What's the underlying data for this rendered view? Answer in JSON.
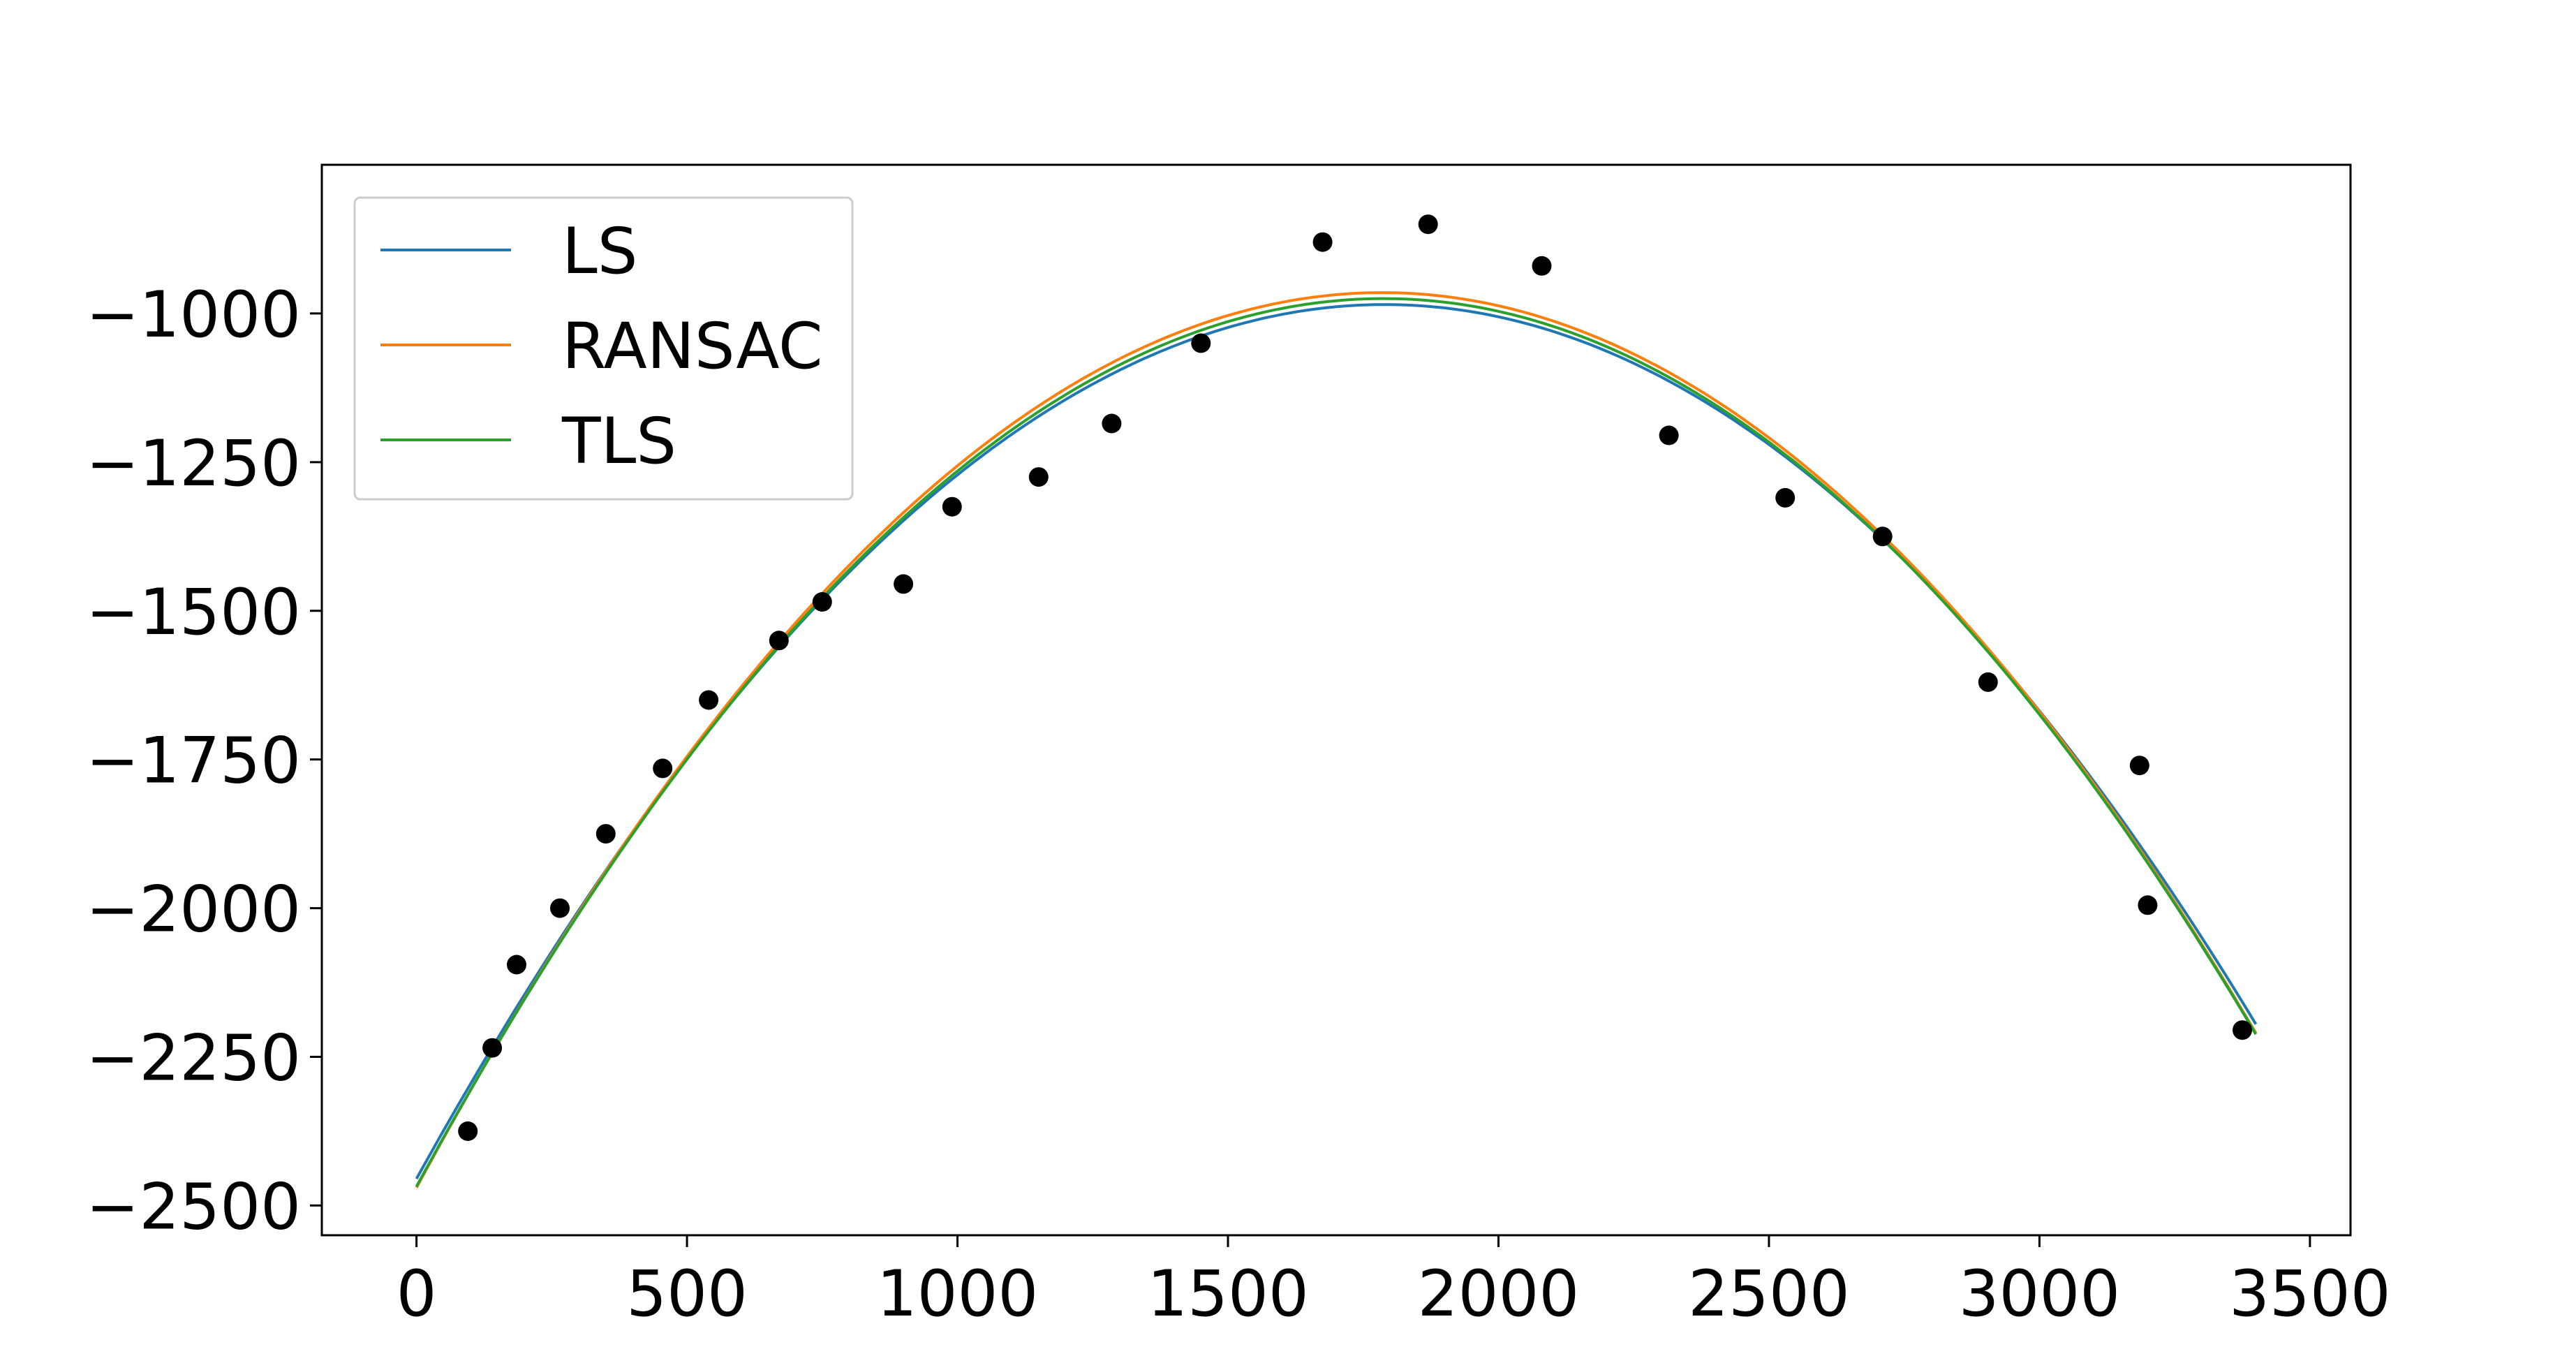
{
  "chart_data": {
    "type": "scatter",
    "title": "",
    "xlabel": "",
    "ylabel": "",
    "xlim": [
      -175,
      3575
    ],
    "ylim": [
      -2550,
      -750
    ],
    "x_ticks": [
      0,
      500,
      1000,
      1500,
      2000,
      2500,
      3000,
      3500
    ],
    "y_ticks": [
      -1000,
      -1250,
      -1500,
      -1750,
      -2000,
      -2250,
      -2500
    ],
    "x_tick_labels": [
      "0",
      "500",
      "1000",
      "1500",
      "2000",
      "2500",
      "3000",
      "3500"
    ],
    "y_tick_labels": [
      "−1000",
      "−1250",
      "−1500",
      "−1750",
      "−2000",
      "−2250",
      "−2500"
    ],
    "grid": false,
    "legend": {
      "placement": "top-left"
    },
    "points": {
      "color": "#000000",
      "x": [
        95,
        140,
        185,
        265,
        350,
        455,
        540,
        670,
        750,
        900,
        990,
        1150,
        1285,
        1450,
        1675,
        1870,
        2080,
        2315,
        2530,
        2710,
        2905,
        3185,
        3200,
        3375
      ],
      "y": [
        -2375,
        -2235,
        -2095,
        -2000,
        -1875,
        -1765,
        -1650,
        -1550,
        -1485,
        -1455,
        -1325,
        -1275,
        -1185,
        -1050,
        -880,
        -850,
        -920,
        -1205,
        -1310,
        -1375,
        -1620,
        -1760,
        -1995,
        -2205
      ]
    },
    "series": [
      {
        "name": "LS",
        "color": "#1f77b4",
        "type": "line",
        "x_range": [
          0,
          3400
        ],
        "vertex_x": 1790,
        "vertex_y": -985,
        "start_y": -2455,
        "end_y": -2195
      },
      {
        "name": "RANSAC",
        "color": "#ff7f0e",
        "type": "line",
        "x_range": [
          0,
          3400
        ],
        "vertex_x": 1785,
        "vertex_y": -965,
        "start_y": -2470,
        "end_y": -2210
      },
      {
        "name": "TLS",
        "color": "#2ca02c",
        "type": "line",
        "x_range": [
          0,
          3400
        ],
        "vertex_x": 1788,
        "vertex_y": -975,
        "start_y": -2468,
        "end_y": -2212
      }
    ]
  }
}
